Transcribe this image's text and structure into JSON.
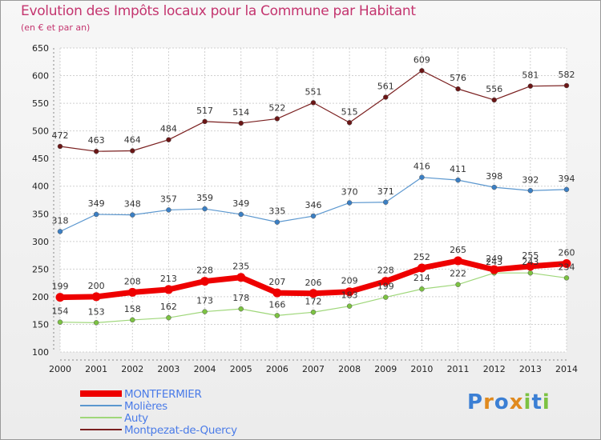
{
  "title": "Evolution des Impôts locaux pour la Commune par Habitant",
  "subtitle": "(en € et par an)",
  "logo": {
    "text": "Proxiti",
    "colors": [
      "#3b7fd4",
      "#e08a1e",
      "#3b7fd4",
      "#e08a1e",
      "#7cc242",
      "#3b7fd4",
      "#7cc242"
    ]
  },
  "chart_data": {
    "type": "line",
    "x": [
      2000,
      2001,
      2002,
      2003,
      2004,
      2005,
      2006,
      2007,
      2008,
      2009,
      2010,
      2011,
      2012,
      2013,
      2014
    ],
    "ylim": [
      100,
      650
    ],
    "yticks": [
      100,
      150,
      200,
      250,
      300,
      350,
      400,
      450,
      500,
      550,
      600,
      650
    ],
    "grid": true,
    "legend_position": "bottom-left",
    "series": [
      {
        "name": "Montpezat-de-Quercy",
        "color": "#7a1f1f",
        "point_color": "#6b1616",
        "width": 1.2,
        "values": [
          472,
          463,
          464,
          484,
          517,
          514,
          522,
          551,
          515,
          561,
          609,
          576,
          556,
          581,
          582
        ],
        "labels": [
          "472",
          "463",
          "464",
          "484",
          "517",
          "514",
          "522",
          "551",
          "515",
          "561",
          "609",
          "576",
          "556",
          "581",
          "582"
        ]
      },
      {
        "name": "Molières",
        "color": "#5b97cf",
        "point_color": "#3b7fc4",
        "width": 1.2,
        "values": [
          318,
          349,
          348,
          357,
          359,
          349,
          335,
          346,
          370,
          371,
          416,
          411,
          398,
          392,
          394
        ],
        "labels": [
          "318",
          "349",
          "348",
          "357",
          "359",
          "349",
          "335",
          "346",
          "370",
          "371",
          "416",
          "411",
          "398",
          "392",
          "394"
        ]
      },
      {
        "name": "Auty",
        "color": "#9fd77a",
        "point_color": "#7cc242",
        "width": 1.2,
        "values": [
          154,
          153,
          158,
          162,
          173,
          178,
          166,
          172,
          183,
          199,
          214,
          222,
          243,
          243,
          234
        ],
        "labels": [
          "154",
          "153",
          "158",
          "162",
          "173",
          "178",
          "166",
          "172",
          "183",
          "199",
          "214",
          "222",
          "243",
          "243",
          "234"
        ]
      },
      {
        "name": "MONTFERMIER",
        "color": "#ee0000",
        "point_color": "#ee0000",
        "width": 7,
        "values": [
          199,
          200,
          208,
          213,
          228,
          235,
          207,
          206,
          209,
          228,
          252,
          265,
          249,
          255,
          260
        ],
        "labels": [
          "199",
          "200",
          "208",
          "213",
          "228",
          "235",
          "207",
          "206",
          "209",
          "228",
          "252",
          "265",
          "249",
          "255",
          "260"
        ]
      }
    ],
    "legend_order": [
      "MONTFERMIER",
      "Molières",
      "Auty",
      "Montpezat-de-Quercy"
    ]
  }
}
